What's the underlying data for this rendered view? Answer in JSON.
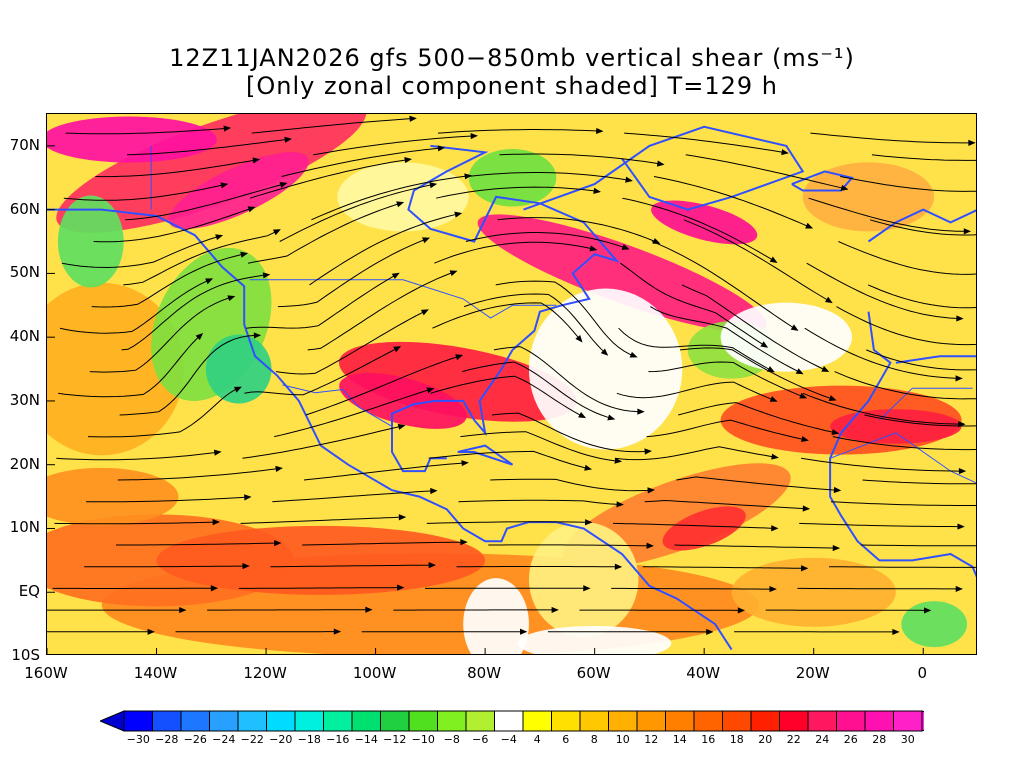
{
  "title_line1": "12Z11JAN2026 gfs 500−850mb vertical shear (ms⁻¹)",
  "title_line2": "[Only zonal component shaded] T=129 h",
  "lat_labels": [
    "70N",
    "60N",
    "50N",
    "40N",
    "30N",
    "20N",
    "10N",
    "EQ",
    "10S"
  ],
  "lat_values": [
    70,
    60,
    50,
    40,
    30,
    20,
    10,
    0,
    -10
  ],
  "lon_labels": [
    "160W",
    "140W",
    "120W",
    "100W",
    "80W",
    "60W",
    "40W",
    "20W",
    "0"
  ],
  "lon_values": [
    -160,
    -140,
    -120,
    -100,
    -80,
    -60,
    -40,
    -20,
    0
  ],
  "map_extent": {
    "lon": [
      -160,
      10
    ],
    "lat": [
      -10,
      75
    ]
  },
  "colorbar": {
    "labels": [
      "−30",
      "−28",
      "−26",
      "−24",
      "−22",
      "−20",
      "−18",
      "−16",
      "−14",
      "−12",
      "−10",
      "−8",
      "−6",
      "−4",
      "4",
      "6",
      "8",
      "10",
      "12",
      "14",
      "16",
      "18",
      "20",
      "22",
      "24",
      "26",
      "28",
      "30"
    ],
    "colors": [
      "#0000ff",
      "#1450ff",
      "#1e78ff",
      "#28a0ff",
      "#20c0ff",
      "#00dcff",
      "#00f0e0",
      "#00f0a0",
      "#00e070",
      "#20d040",
      "#50e020",
      "#80f020",
      "#b0f030",
      "#ffffff",
      "#ffff00",
      "#ffe000",
      "#ffc800",
      "#ffb000",
      "#ff9800",
      "#ff8000",
      "#ff6400",
      "#ff4800",
      "#ff2000",
      "#ff0028",
      "#ff1860",
      "#ff1090",
      "#ff10b0",
      "#ff20c8"
    ]
  },
  "colors": {
    "coast": "#3050ff",
    "streamline": "#000000"
  }
}
